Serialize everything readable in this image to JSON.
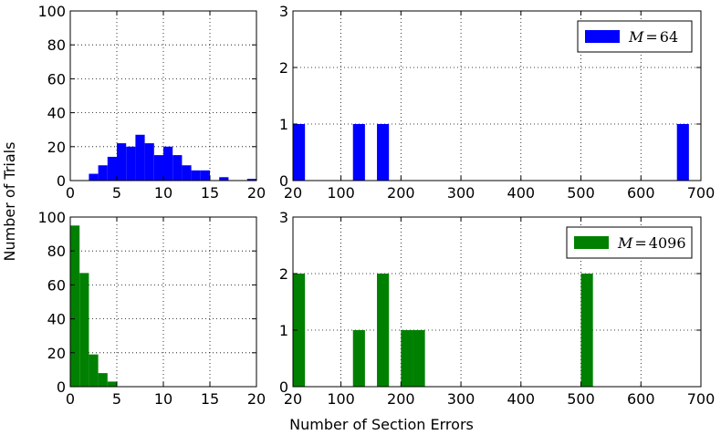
{
  "figure": {
    "ylabel": "Number of Trials",
    "xlabel": "Number of Section Errors"
  },
  "chart_data": [
    {
      "id": "top-left",
      "type": "bar",
      "color": "#0000ff",
      "xlim": [
        0,
        20
      ],
      "ylim": [
        0,
        100
      ],
      "xticks": [
        "0",
        "5",
        "10",
        "15",
        "20"
      ],
      "yticks": [
        "0",
        "20",
        "40",
        "60",
        "80",
        "100"
      ],
      "bin_width": 1,
      "bins": [
        {
          "x": 2,
          "value": 4
        },
        {
          "x": 3,
          "value": 9
        },
        {
          "x": 4,
          "value": 14
        },
        {
          "x": 5,
          "value": 22
        },
        {
          "x": 6,
          "value": 20
        },
        {
          "x": 7,
          "value": 27
        },
        {
          "x": 8,
          "value": 22
        },
        {
          "x": 9,
          "value": 15
        },
        {
          "x": 10,
          "value": 20
        },
        {
          "x": 11,
          "value": 15
        },
        {
          "x": 12,
          "value": 9
        },
        {
          "x": 13,
          "value": 6
        },
        {
          "x": 14,
          "value": 6
        },
        {
          "x": 16,
          "value": 2
        },
        {
          "x": 19,
          "value": 1
        }
      ],
      "grid": true
    },
    {
      "id": "top-right",
      "type": "bar",
      "color": "#0000ff",
      "xlim": [
        20,
        700
      ],
      "ylim": [
        0,
        3
      ],
      "xticks": [
        "20",
        "100",
        "200",
        "300",
        "400",
        "500",
        "600",
        "700"
      ],
      "yticks": [
        "0",
        "1",
        "2",
        "3"
      ],
      "bin_width": 20,
      "bins": [
        {
          "x": 20,
          "value": 1
        },
        {
          "x": 120,
          "value": 1
        },
        {
          "x": 160,
          "value": 1
        },
        {
          "x": 660,
          "value": 1
        }
      ],
      "legend": {
        "label": "M=64",
        "placement": "top-right"
      },
      "grid": true
    },
    {
      "id": "bottom-left",
      "type": "bar",
      "color": "#008000",
      "xlim": [
        0,
        20
      ],
      "ylim": [
        0,
        100
      ],
      "xticks": [
        "0",
        "5",
        "10",
        "15",
        "20"
      ],
      "yticks": [
        "0",
        "20",
        "40",
        "60",
        "80",
        "100"
      ],
      "bin_width": 1,
      "bins": [
        {
          "x": 0,
          "value": 95
        },
        {
          "x": 1,
          "value": 67
        },
        {
          "x": 2,
          "value": 19
        },
        {
          "x": 3,
          "value": 8
        },
        {
          "x": 4,
          "value": 3
        }
      ],
      "grid": true
    },
    {
      "id": "bottom-right",
      "type": "bar",
      "color": "#008000",
      "xlim": [
        20,
        700
      ],
      "ylim": [
        0,
        3
      ],
      "xticks": [
        "20",
        "100",
        "200",
        "300",
        "400",
        "500",
        "600",
        "700"
      ],
      "yticks": [
        "0",
        "1",
        "2",
        "3"
      ],
      "bin_width": 20,
      "bins": [
        {
          "x": 20,
          "value": 2
        },
        {
          "x": 120,
          "value": 1
        },
        {
          "x": 160,
          "value": 2
        },
        {
          "x": 200,
          "value": 1
        },
        {
          "x": 220,
          "value": 1
        },
        {
          "x": 500,
          "value": 2
        }
      ],
      "legend": {
        "label": "M=4096",
        "placement": "top-right"
      },
      "grid": true
    }
  ]
}
